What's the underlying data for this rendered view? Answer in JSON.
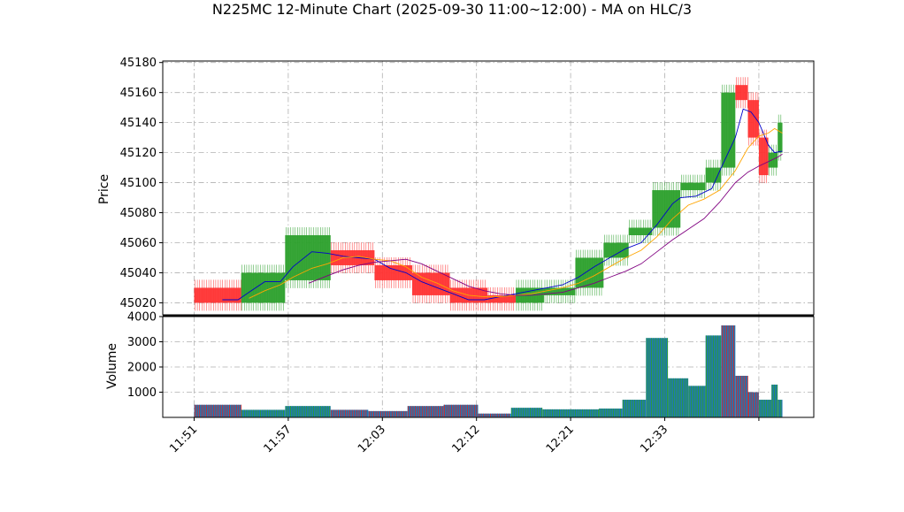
{
  "title": "N225MC 12-Minute Chart (2025-09-30 11:00~12:00) - MA on HLC/3",
  "colors": {
    "up": "#2ca02c",
    "down": "#ff3333",
    "ma_short": "#0000cc",
    "ma_mid": "#ffa500",
    "ma_long": "#800080",
    "volume_fill": "#1f77b4",
    "volume_edge_up": "#2ca02c",
    "volume_edge_down": "#d62728",
    "grid": "#b0b0b0"
  },
  "chart_data": [
    {
      "type": "renko",
      "ylabel": "Price",
      "ylim": [
        45012,
        45181
      ],
      "yticks": [
        45020,
        45040,
        45060,
        45080,
        45100,
        45120,
        45140,
        45160,
        45180
      ],
      "grid": true,
      "bricks": [
        {
          "t": 0.0,
          "t2": 3.0,
          "open": 45030,
          "close": 45020
        },
        {
          "t": 3.0,
          "t2": 5.8,
          "open": 45020,
          "close": 45040
        },
        {
          "t": 5.8,
          "t2": 8.7,
          "open": 45035,
          "close": 45065
        },
        {
          "t": 8.7,
          "t2": 11.5,
          "open": 45055,
          "close": 45045
        },
        {
          "t": 11.5,
          "t2": 13.9,
          "open": 45045,
          "close": 45035
        },
        {
          "t": 13.9,
          "t2": 16.3,
          "open": 45040,
          "close": 45025
        },
        {
          "t": 16.3,
          "t2": 18.7,
          "open": 45030,
          "close": 45020
        },
        {
          "t": 18.7,
          "t2": 20.5,
          "open": 45025,
          "close": 45020
        },
        {
          "t": 20.5,
          "t2": 22.3,
          "open": 45020,
          "close": 45030
        },
        {
          "t": 22.3,
          "t2": 24.3,
          "open": 45025,
          "close": 45030
        },
        {
          "t": 24.3,
          "t2": 26.1,
          "open": 45030,
          "close": 45050
        },
        {
          "t": 26.1,
          "t2": 27.7,
          "open": 45050,
          "close": 45060
        },
        {
          "t": 27.7,
          "t2": 29.2,
          "open": 45065,
          "close": 45070
        },
        {
          "t": 29.2,
          "t2": 31.0,
          "open": 45070,
          "close": 45095
        },
        {
          "t": 31.0,
          "t2": 32.6,
          "open": 45095,
          "close": 45100
        },
        {
          "t": 32.6,
          "t2": 33.6,
          "open": 45100,
          "close": 45110
        },
        {
          "t": 33.6,
          "t2": 34.5,
          "open": 45110,
          "close": 45160
        },
        {
          "t": 34.5,
          "t2": 35.3,
          "open": 45165,
          "close": 45155
        },
        {
          "t": 35.3,
          "t2": 36.0,
          "open": 45155,
          "close": 45130
        },
        {
          "t": 36.0,
          "t2": 36.6,
          "open": 45130,
          "close": 45105
        },
        {
          "t": 36.6,
          "t2": 37.2,
          "open": 45110,
          "close": 45120
        },
        {
          "t": 37.2,
          "t2": 37.5,
          "open": 45120,
          "close": 45140
        }
      ],
      "ma_series": [
        {
          "key": "ma_short",
          "points": [
            [
              1.8,
              45022
            ],
            [
              2.8,
              45022
            ],
            [
              3.5,
              45027
            ],
            [
              4.5,
              45034
            ],
            [
              5.5,
              45034
            ],
            [
              6.3,
              45044
            ],
            [
              7.5,
              45054
            ],
            [
              8.5,
              45053
            ],
            [
              9.5,
              45051
            ],
            [
              10.5,
              45050
            ],
            [
              11.5,
              45049
            ],
            [
              12.5,
              45043
            ],
            [
              13.5,
              45040
            ],
            [
              14.5,
              45034
            ],
            [
              15.5,
              45030
            ],
            [
              16.5,
              45026
            ],
            [
              17.5,
              45022
            ],
            [
              18.5,
              45022
            ],
            [
              19.5,
              45024
            ],
            [
              20.5,
              45026
            ],
            [
              21.5,
              45028
            ],
            [
              22.5,
              45030
            ],
            [
              23.5,
              45032
            ],
            [
              24.5,
              45037
            ],
            [
              25.5,
              45044
            ],
            [
              26.5,
              45050
            ],
            [
              27.5,
              45056
            ],
            [
              28.5,
              45060
            ],
            [
              29.5,
              45072
            ],
            [
              30.5,
              45086
            ],
            [
              31.0,
              45090
            ],
            [
              32.0,
              45091
            ],
            [
              33.0,
              45096
            ],
            [
              33.6,
              45110
            ],
            [
              34.5,
              45130
            ],
            [
              35.0,
              45149
            ],
            [
              35.5,
              45147
            ],
            [
              36.0,
              45140
            ],
            [
              36.6,
              45125
            ],
            [
              37.0,
              45120
            ],
            [
              37.5,
              45121
            ]
          ]
        },
        {
          "key": "ma_mid",
          "points": [
            [
              3.5,
              45023
            ],
            [
              4.5,
              45028
            ],
            [
              5.5,
              45032
            ],
            [
              6.3,
              45037
            ],
            [
              7.5,
              45043
            ],
            [
              8.5,
              45046
            ],
            [
              9.5,
              45050
            ],
            [
              10.5,
              45051
            ],
            [
              11.5,
              45049
            ],
            [
              12.5,
              45048
            ],
            [
              13.5,
              45044
            ],
            [
              14.5,
              45037
            ],
            [
              15.5,
              45033
            ],
            [
              16.5,
              45028
            ],
            [
              17.5,
              45025
            ],
            [
              18.5,
              45024
            ],
            [
              19.5,
              45024
            ],
            [
              20.5,
              45025
            ],
            [
              21.5,
              45026
            ],
            [
              22.5,
              45028
            ],
            [
              23.5,
              45030
            ],
            [
              24.5,
              45033
            ],
            [
              25.5,
              45038
            ],
            [
              26.5,
              45044
            ],
            [
              27.5,
              45050
            ],
            [
              28.5,
              45055
            ],
            [
              29.5,
              45064
            ],
            [
              30.5,
              45076
            ],
            [
              31.5,
              45085
            ],
            [
              32.5,
              45089
            ],
            [
              33.5,
              45095
            ],
            [
              34.5,
              45108
            ],
            [
              35.3,
              45123
            ],
            [
              36.0,
              45131
            ],
            [
              36.6,
              45133
            ],
            [
              37.0,
              45136
            ],
            [
              37.5,
              45133
            ]
          ]
        },
        {
          "key": "ma_long",
          "points": [
            [
              7.3,
              45033
            ],
            [
              8.5,
              45038
            ],
            [
              9.5,
              45042
            ],
            [
              10.5,
              45045
            ],
            [
              11.5,
              45047
            ],
            [
              12.5,
              45048
            ],
            [
              13.5,
              45049
            ],
            [
              14.5,
              45046
            ],
            [
              15.5,
              45041
            ],
            [
              16.5,
              45036
            ],
            [
              17.5,
              45031
            ],
            [
              18.5,
              45028
            ],
            [
              19.5,
              45026
            ],
            [
              20.5,
              45025
            ],
            [
              21.5,
              45025
            ],
            [
              22.5,
              45026
            ],
            [
              23.5,
              45027
            ],
            [
              24.5,
              45030
            ],
            [
              25.5,
              45033
            ],
            [
              26.5,
              45037
            ],
            [
              27.5,
              45041
            ],
            [
              28.5,
              45046
            ],
            [
              29.5,
              45054
            ],
            [
              30.5,
              45062
            ],
            [
              31.5,
              45069
            ],
            [
              32.5,
              45076
            ],
            [
              33.5,
              45087
            ],
            [
              34.5,
              45100
            ],
            [
              35.3,
              45107
            ],
            [
              36.0,
              45111
            ],
            [
              36.6,
              45114
            ],
            [
              37.2,
              45117
            ],
            [
              37.5,
              45119
            ]
          ]
        }
      ]
    },
    {
      "type": "bar",
      "ylabel": "Volume",
      "ylim": [
        0,
        4000
      ],
      "yticks": [
        1000,
        2000,
        3000,
        4000
      ],
      "grid": true,
      "bars": [
        {
          "t": 0.0,
          "t2": 3.0,
          "value": 500,
          "dir": "down"
        },
        {
          "t": 3.0,
          "t2": 5.8,
          "value": 300,
          "dir": "up"
        },
        {
          "t": 5.8,
          "t2": 8.7,
          "value": 450,
          "dir": "up"
        },
        {
          "t": 8.7,
          "t2": 11.1,
          "value": 300,
          "dir": "down"
        },
        {
          "t": 11.1,
          "t2": 13.6,
          "value": 250,
          "dir": "down"
        },
        {
          "t": 13.6,
          "t2": 15.9,
          "value": 450,
          "dir": "down"
        },
        {
          "t": 15.9,
          "t2": 18.1,
          "value": 500,
          "dir": "down"
        },
        {
          "t": 18.1,
          "t2": 20.2,
          "value": 150,
          "dir": "down"
        },
        {
          "t": 20.2,
          "t2": 22.2,
          "value": 380,
          "dir": "up"
        },
        {
          "t": 22.2,
          "t2": 25.8,
          "value": 320,
          "dir": "up"
        },
        {
          "t": 25.8,
          "t2": 27.3,
          "value": 350,
          "dir": "up"
        },
        {
          "t": 27.3,
          "t2": 28.8,
          "value": 700,
          "dir": "up"
        },
        {
          "t": 28.8,
          "t2": 30.2,
          "value": 3150,
          "dir": "up"
        },
        {
          "t": 30.2,
          "t2": 31.5,
          "value": 1550,
          "dir": "up"
        },
        {
          "t": 31.5,
          "t2": 32.6,
          "value": 1250,
          "dir": "up"
        },
        {
          "t": 32.6,
          "t2": 33.6,
          "value": 3250,
          "dir": "up"
        },
        {
          "t": 33.6,
          "t2": 34.5,
          "value": 3650,
          "dir": "down"
        },
        {
          "t": 34.5,
          "t2": 35.3,
          "value": 1650,
          "dir": "down"
        },
        {
          "t": 35.3,
          "t2": 36.0,
          "value": 1000,
          "dir": "down"
        },
        {
          "t": 36.0,
          "t2": 36.8,
          "value": 700,
          "dir": "up"
        },
        {
          "t": 36.8,
          "t2": 37.2,
          "value": 1300,
          "dir": "up"
        },
        {
          "t": 37.2,
          "t2": 37.5,
          "value": 700,
          "dir": "up"
        }
      ]
    }
  ],
  "x_axis": {
    "range": [
      -2.0,
      39.5
    ],
    "ticks": [
      {
        "t": 0,
        "label": "11:51"
      },
      {
        "t": 6,
        "label": "11:57"
      },
      {
        "t": 12,
        "label": "12:03"
      },
      {
        "t": 18,
        "label": "12:12"
      },
      {
        "t": 24,
        "label": "12:21"
      },
      {
        "t": 30,
        "label": "12:33"
      },
      {
        "t": 36,
        "label": ""
      }
    ]
  }
}
